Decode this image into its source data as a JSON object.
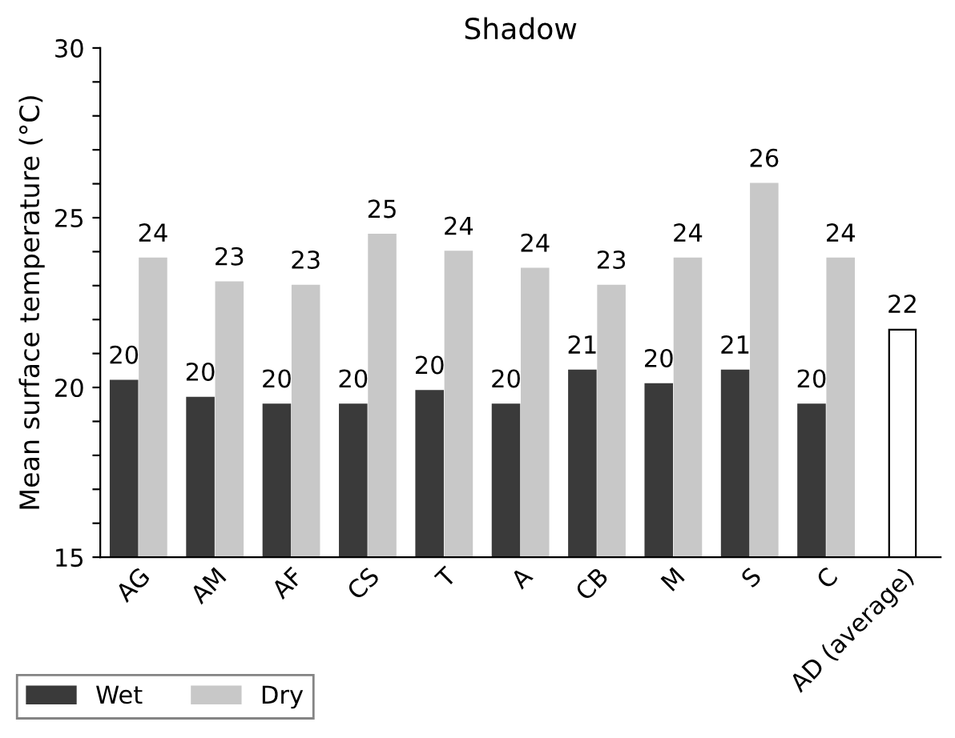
{
  "chart_data": {
    "type": "bar",
    "title": "Shadow",
    "ylabel": "Mean surface temperature (°C)",
    "categories": [
      "AG",
      "AM",
      "AF",
      "CS",
      "T",
      "A",
      "CB",
      "M",
      "S",
      "C",
      "AD (average)"
    ],
    "series": [
      {
        "name": "Wet",
        "color": "#3a3a3a",
        "values": [
          20.2,
          19.7,
          19.5,
          19.5,
          19.9,
          19.5,
          20.5,
          20.1,
          20.5,
          19.5,
          null
        ],
        "value_labels": [
          "20",
          "20",
          "20",
          "20",
          "20",
          "20",
          "21",
          "20",
          "21",
          "20",
          null
        ]
      },
      {
        "name": "Dry",
        "color": "#c8c8c8",
        "values": [
          23.8,
          23.1,
          23.0,
          24.5,
          24.0,
          23.5,
          23.0,
          23.8,
          26.0,
          23.8,
          null
        ],
        "value_labels": [
          "24",
          "23",
          "23",
          "25",
          "24",
          "24",
          "23",
          "24",
          "26",
          "24",
          null
        ]
      },
      {
        "color": "#000000",
        "values": [
          null,
          null,
          null,
          null,
          null,
          null,
          null,
          null,
          null,
          null,
          21.7
        ],
        "value_labels": [
          null,
          null,
          null,
          null,
          null,
          null,
          null,
          null,
          null,
          null,
          "22"
        ]
      }
    ],
    "ylim": [
      15,
      30
    ],
    "yticks": [
      15,
      {
        "value": 16,
        "label": null
      },
      {
        "value": 17,
        "label": null
      },
      {
        "value": 18,
        "label": null
      },
      {
        "value": 19,
        "label": null
      },
      20,
      {
        "value": 21,
        "label": null
      },
      {
        "value": 22,
        "label": null
      },
      {
        "value": 23,
        "label": null
      },
      {
        "value": 24,
        "label": null
      },
      25,
      {
        "value": 26,
        "label": null
      },
      {
        "value": 27,
        "label": null
      },
      {
        "value": 28,
        "label": null
      },
      {
        "value": 29,
        "label": null
      },
      30
    ],
    "grid": false,
    "legend": "bottom left"
  }
}
